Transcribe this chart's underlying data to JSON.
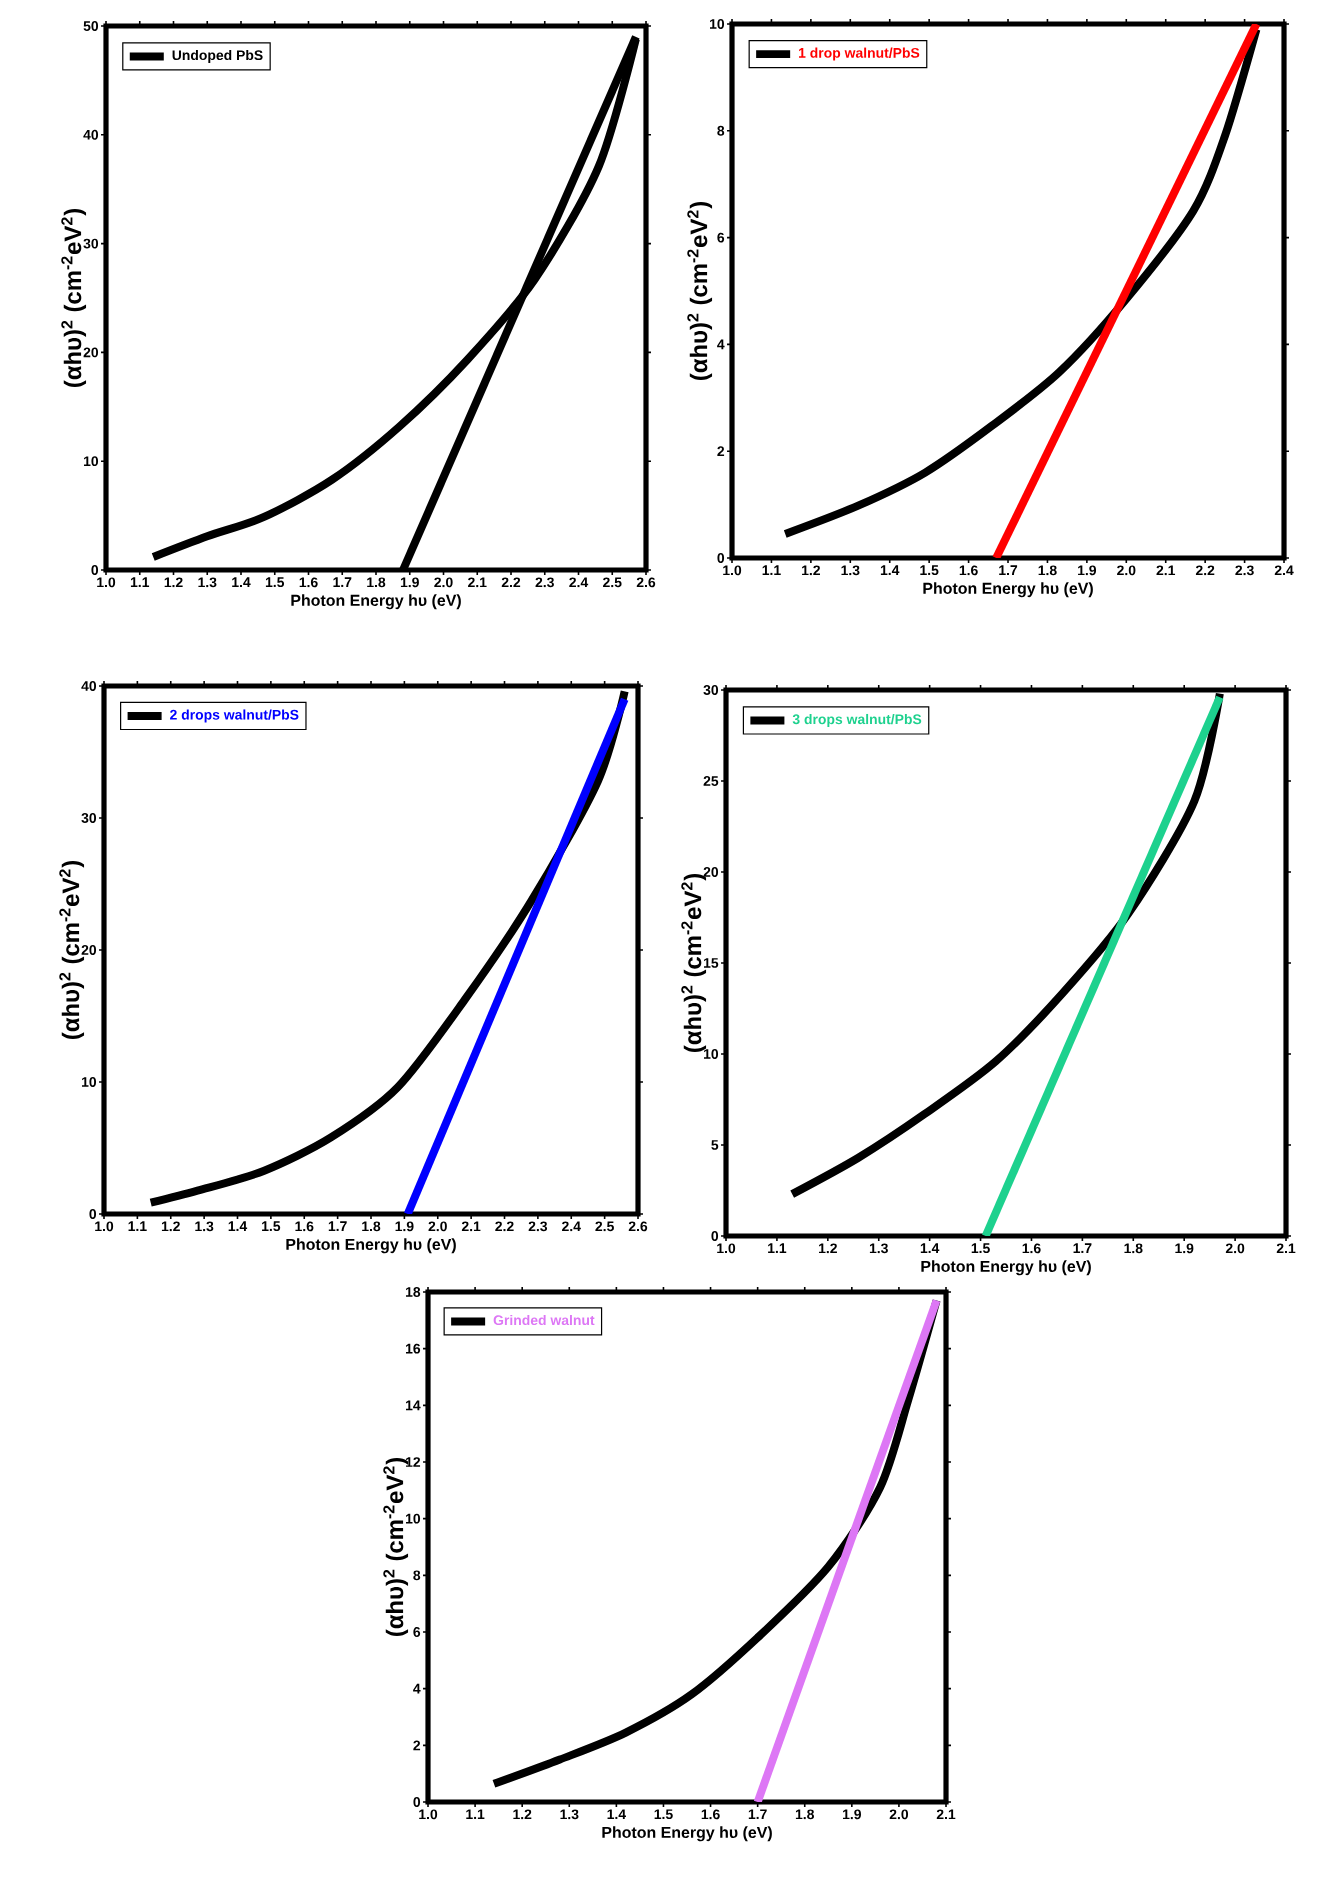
{
  "chart_data": [
    {
      "type": "line",
      "xlabel": "Photon Energy  hυ (eV)",
      "ylabel": "(αhυ)$^{2}$ (cm$^{-2}$eV$^{2}$)",
      "legend": "top left",
      "xlim": [
        1.0,
        2.6
      ],
      "xticks": [
        {
          "value": 1.0,
          "label": "1.0"
        },
        {
          "value": 1.1,
          "label": "1.1"
        },
        {
          "value": 1.2,
          "label": "1.2"
        },
        {
          "value": 1.3,
          "label": "1.3"
        },
        {
          "value": 1.4,
          "label": "1.4"
        },
        {
          "value": 1.5,
          "label": "1.5"
        },
        {
          "value": 1.6,
          "label": "1.6"
        },
        {
          "value": 1.7,
          "label": "1.7"
        },
        {
          "value": 1.8,
          "label": "1.8"
        },
        {
          "value": 1.9,
          "label": "1.9"
        },
        {
          "value": 2.0,
          "label": "2.0"
        },
        {
          "value": 2.1,
          "label": "2.1"
        },
        {
          "value": 2.2,
          "label": "2.2"
        },
        {
          "value": 2.3,
          "label": "2.3"
        },
        {
          "value": 2.4,
          "label": "2.4"
        },
        {
          "value": 2.5,
          "label": "2.5"
        },
        {
          "value": 2.6,
          "label": "2.6"
        }
      ],
      "ylim": [
        0,
        50
      ],
      "yticks": [
        0,
        10,
        20,
        30,
        40,
        50
      ],
      "series": [
        {
          "name": "Undoped PbS",
          "color": "#000000",
          "x": [
            1.14,
            1.3,
            1.47,
            1.67,
            1.87,
            2.07,
            2.27,
            2.46,
            2.57
          ],
          "values": [
            1.2,
            3.1,
            4.9,
            8.3,
            13.2,
            19.3,
            26.7,
            37.1,
            48.8
          ]
        },
        {
          "color": "#000000",
          "x": [
            1.88,
            2.57
          ],
          "values": [
            0,
            49
          ]
        }
      ]
    },
    {
      "type": "line",
      "xlabel": "Photon Energy  hυ (eV)",
      "ylabel": "(αhυ)$^{2}$ (cm$^{-2}$eV$^{2}$)",
      "legend": "top left",
      "xlim": [
        1.0,
        2.4
      ],
      "xticks": [
        {
          "value": 1.0,
          "label": "1.0"
        },
        {
          "value": 1.1,
          "label": "1.1"
        },
        {
          "value": 1.2,
          "label": "1.2"
        },
        {
          "value": 1.3,
          "label": "1.3"
        },
        {
          "value": 1.4,
          "label": "1.4"
        },
        {
          "value": 1.5,
          "label": "1.5"
        },
        {
          "value": 1.6,
          "label": "1.6"
        },
        {
          "value": 1.7,
          "label": "1.7"
        },
        {
          "value": 1.8,
          "label": "1.8"
        },
        {
          "value": 1.9,
          "label": "1.9"
        },
        {
          "value": 2.0,
          "label": "2.0"
        },
        {
          "value": 2.1,
          "label": "2.1"
        },
        {
          "value": 2.2,
          "label": "2.2"
        },
        {
          "value": 2.3,
          "label": "2.3"
        },
        {
          "value": 2.4,
          "label": "2.4"
        }
      ],
      "ylim": [
        0,
        10
      ],
      "yticks": [
        0,
        2,
        4,
        6,
        8,
        10
      ],
      "series": [
        {
          "name": "1 drop walnut/PbS",
          "color": "#000000",
          "x": [
            1.135,
            1.32,
            1.49,
            1.66,
            1.83,
            2.0,
            2.17,
            2.25,
            2.33
          ],
          "values": [
            0.45,
            0.98,
            1.6,
            2.48,
            3.48,
            4.85,
            6.5,
            7.9,
            9.9
          ]
        },
        {
          "color": "#ff0000",
          "x": [
            1.67,
            2.33
          ],
          "values": [
            0,
            10
          ]
        }
      ]
    },
    {
      "type": "line",
      "xlabel": "Photon Energy  hυ (eV)",
      "ylabel": "(αhυ)$^{2}$ (cm$^{-2}$eV$^{2}$)",
      "legend": "top left",
      "xlim": [
        1.0,
        2.6
      ],
      "xticks": [
        {
          "value": 1.0,
          "label": "1.0"
        },
        {
          "value": 1.1,
          "label": "1.1"
        },
        {
          "value": 1.2,
          "label": "1.2"
        },
        {
          "value": 1.3,
          "label": "1.3"
        },
        {
          "value": 1.4,
          "label": "1.4"
        },
        {
          "value": 1.5,
          "label": "1.5"
        },
        {
          "value": 1.6,
          "label": "1.6"
        },
        {
          "value": 1.7,
          "label": "1.7"
        },
        {
          "value": 1.8,
          "label": "1.8"
        },
        {
          "value": 1.9,
          "label": "1.9"
        },
        {
          "value": 2.0,
          "label": "2.0"
        },
        {
          "value": 2.1,
          "label": "2.1"
        },
        {
          "value": 2.2,
          "label": "2.2"
        },
        {
          "value": 2.3,
          "label": "2.3"
        },
        {
          "value": 2.4,
          "label": "2.4"
        },
        {
          "value": 2.5,
          "label": "2.5"
        },
        {
          "value": 2.6,
          "label": "2.6"
        }
      ],
      "ylim": [
        0,
        40
      ],
      "yticks": [
        0,
        10,
        20,
        30,
        40
      ],
      "series": [
        {
          "name": "2 drops walnut/PbS",
          "color": "#000000",
          "x": [
            1.14,
            1.28,
            1.48,
            1.68,
            1.88,
            2.08,
            2.28,
            2.48,
            2.56
          ],
          "values": [
            0.86,
            1.77,
            3.28,
            5.8,
            9.6,
            16.2,
            23.7,
            32.8,
            39.6
          ]
        },
        {
          "color": "#0000ff",
          "x": [
            1.91,
            2.56
          ],
          "values": [
            0,
            39
          ]
        }
      ]
    },
    {
      "type": "line",
      "xlabel": "Photon Energy  hυ (eV)",
      "ylabel": "(αhυ)$^{2}$ (cm$^{-2}$eV$^{2}$)",
      "legend": "top left",
      "xlim": [
        1.0,
        2.1
      ],
      "xticks": [
        {
          "value": 1.0,
          "label": "1.0"
        },
        {
          "value": 1.1,
          "label": "1.1"
        },
        {
          "value": 1.2,
          "label": "1.2"
        },
        {
          "value": 1.3,
          "label": "1.3"
        },
        {
          "value": 1.4,
          "label": "1.4"
        },
        {
          "value": 1.5,
          "label": "1.5"
        },
        {
          "value": 1.6,
          "label": "1.6"
        },
        {
          "value": 1.7,
          "label": "1.7"
        },
        {
          "value": 1.8,
          "label": "1.8"
        },
        {
          "value": 1.9,
          "label": "1.9"
        },
        {
          "value": 2.0,
          "label": "2.0"
        },
        {
          "value": 2.1,
          "label": "2.1"
        }
      ],
      "ylim": [
        0,
        30
      ],
      "yticks": [
        0,
        5,
        10,
        15,
        20,
        25,
        30
      ],
      "series": [
        {
          "name": "3 drops walnut/PbS",
          "color": "#000000",
          "x": [
            1.13,
            1.26,
            1.39,
            1.53,
            1.66,
            1.79,
            1.92,
            1.97
          ],
          "values": [
            2.3,
            4.3,
            6.7,
            9.6,
            13.3,
            17.7,
            23.9,
            29.8
          ]
        },
        {
          "color": "#1dd18e",
          "x": [
            1.51,
            1.97
          ],
          "values": [
            0,
            29.6
          ]
        }
      ]
    },
    {
      "type": "line",
      "xlabel": "Photon Energy  hυ (eV)",
      "ylabel": "(αhυ)$^{2}$ (cm$^{-2}$eV$^{2}$)",
      "legend": "top left",
      "xlim": [
        1.0,
        2.1
      ],
      "xticks": [
        {
          "value": 1.0,
          "label": "1.0"
        },
        {
          "value": 1.1,
          "label": "1.1"
        },
        {
          "value": 1.2,
          "label": "1.2"
        },
        {
          "value": 1.3,
          "label": "1.3"
        },
        {
          "value": 1.4,
          "label": "1.4"
        },
        {
          "value": 1.5,
          "label": "1.5"
        },
        {
          "value": 1.6,
          "label": "1.6"
        },
        {
          "value": 1.7,
          "label": "1.7"
        },
        {
          "value": 1.8,
          "label": "1.8"
        },
        {
          "value": 1.9,
          "label": "1.9"
        },
        {
          "value": 2.0,
          "label": "2.0"
        },
        {
          "value": 2.1,
          "label": "2.1"
        }
      ],
      "ylim": [
        0,
        18
      ],
      "yticks": [
        0,
        2,
        4,
        6,
        8,
        10,
        12,
        14,
        16,
        18
      ],
      "series": [
        {
          "name": "Grinded walnut",
          "color": "#000000",
          "x": [
            1.14,
            1.28,
            1.42,
            1.56,
            1.7,
            1.85,
            1.96,
            2.02,
            2.08
          ],
          "values": [
            0.64,
            1.5,
            2.45,
            3.8,
            5.8,
            8.3,
            11.1,
            14.2,
            17.7
          ]
        },
        {
          "color": "#dd77f5",
          "x": [
            1.7,
            2.08
          ],
          "values": [
            0,
            17.7
          ]
        }
      ]
    }
  ]
}
